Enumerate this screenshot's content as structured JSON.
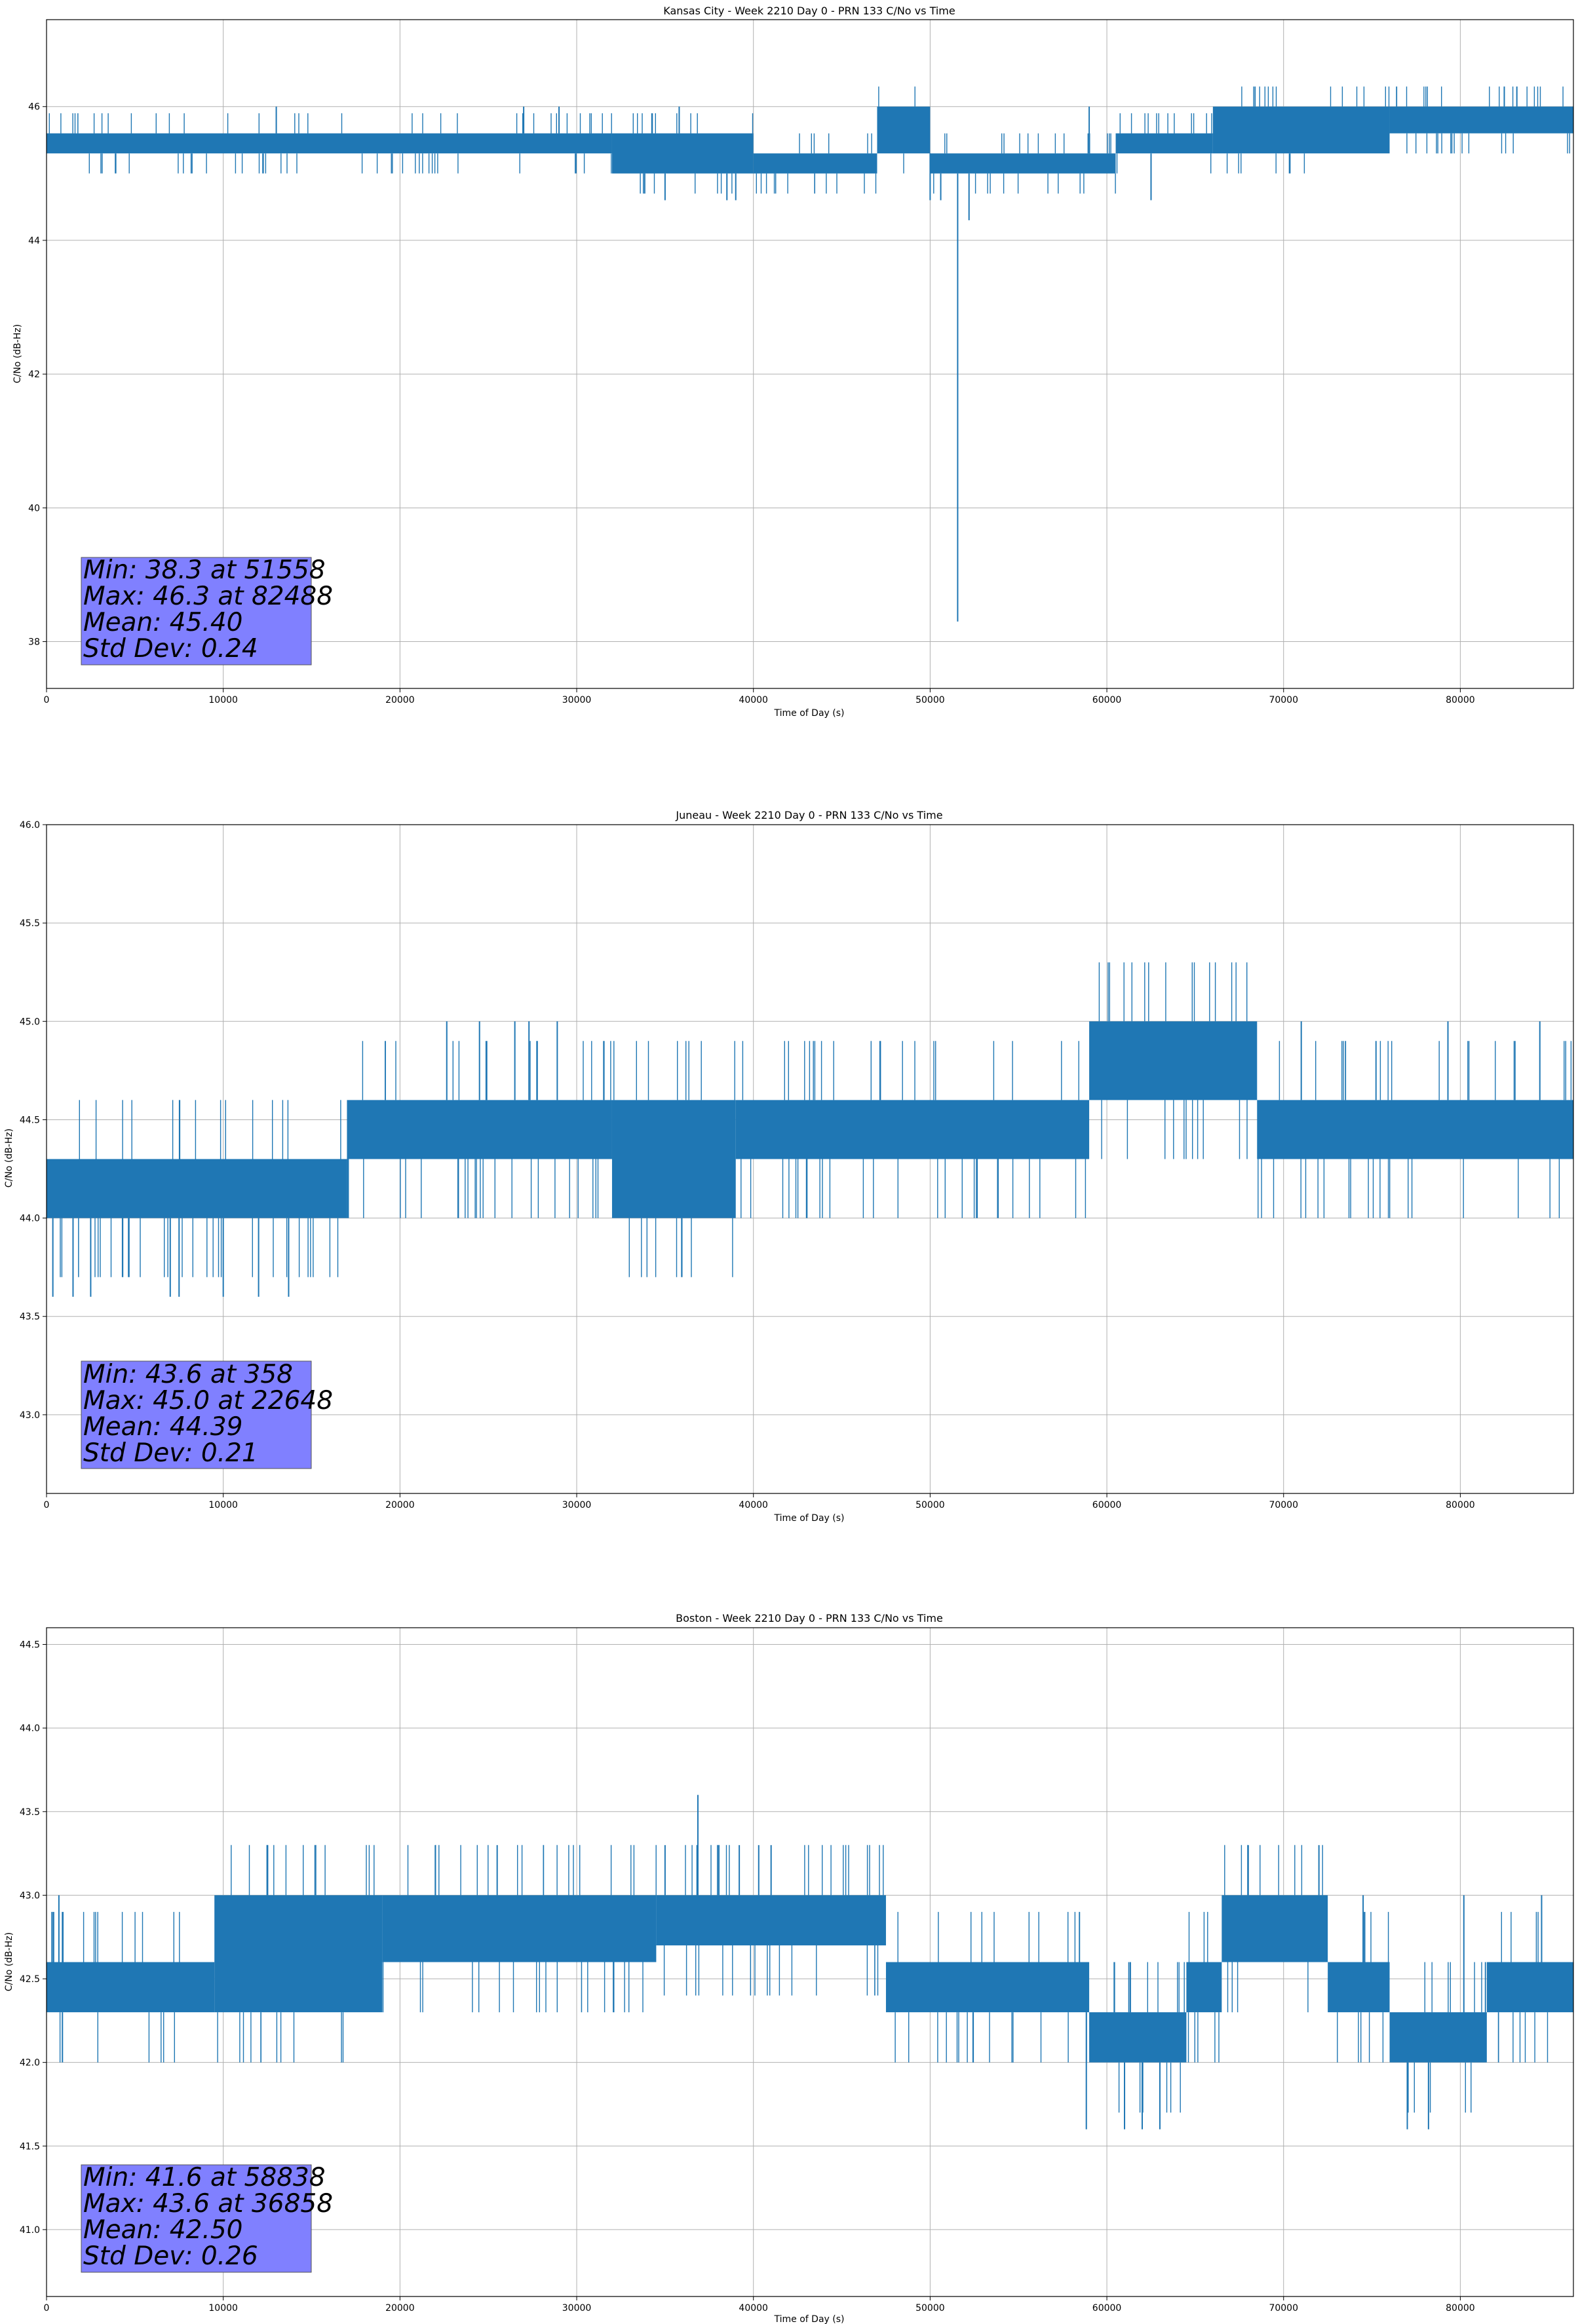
{
  "chart_data": [
    {
      "type": "line",
      "title": "Kansas City - Week 2210 Day 0 - PRN 133 C/No vs Time",
      "xlabel": "Time of Day (s)",
      "ylabel": "C/No (dB-Hz)",
      "xlim": [
        0,
        86400
      ],
      "ylim": [
        37.3,
        47.3
      ],
      "xticks": [
        0,
        10000,
        20000,
        30000,
        40000,
        50000,
        60000,
        70000,
        80000
      ],
      "yticks": [
        38,
        40,
        42,
        44,
        46
      ],
      "ytick_labels": [
        "38",
        "40",
        "42",
        "44",
        "46"
      ],
      "grid": true,
      "series": [
        {
          "name": "C/No",
          "color": "#1f77b4",
          "bands": [
            {
              "x0": 0,
              "x1": 32000,
              "lo": 45.3,
              "hi": 45.6
            },
            {
              "x0": 32000,
              "x1": 40000,
              "lo": 45.0,
              "hi": 45.6
            },
            {
              "x0": 40000,
              "x1": 47000,
              "lo": 45.0,
              "hi": 45.3
            },
            {
              "x0": 47000,
              "x1": 50000,
              "lo": 45.3,
              "hi": 46.0
            },
            {
              "x0": 50000,
              "x1": 60500,
              "lo": 45.0,
              "hi": 45.3
            },
            {
              "x0": 60500,
              "x1": 66000,
              "lo": 45.3,
              "hi": 45.6
            },
            {
              "x0": 66000,
              "x1": 76000,
              "lo": 45.3,
              "hi": 46.0
            },
            {
              "x0": 76000,
              "x1": 86400,
              "lo": 45.6,
              "hi": 46.0
            }
          ],
          "spikes": [
            {
              "x": 51558,
              "y": 38.3
            },
            {
              "x": 52200,
              "y": 44.3
            },
            {
              "x": 13000,
              "y": 46.0
            },
            {
              "x": 27000,
              "y": 46.0
            },
            {
              "x": 29000,
              "y": 46.0
            },
            {
              "x": 35000,
              "y": 44.6
            },
            {
              "x": 35800,
              "y": 46.0
            },
            {
              "x": 38500,
              "y": 44.6
            },
            {
              "x": 39000,
              "y": 44.6
            },
            {
              "x": 50000,
              "y": 44.6
            },
            {
              "x": 50600,
              "y": 44.6
            },
            {
              "x": 59000,
              "y": 46.0
            },
            {
              "x": 62500,
              "y": 44.6
            },
            {
              "x": 82488,
              "y": 46.3
            },
            {
              "x": 83200,
              "y": 46.3
            }
          ]
        }
      ],
      "stats": {
        "min": "Min: 38.3 at 51558",
        "max": "Max: 46.3 at 82488",
        "mean": "Mean: 45.40",
        "std": "Std Dev: 0.24"
      }
    },
    {
      "type": "line",
      "title": "Juneau - Week 2210 Day 0 - PRN 133 C/No vs Time",
      "xlabel": "Time of Day (s)",
      "ylabel": "C/No (dB-Hz)",
      "xlim": [
        0,
        86400
      ],
      "ylim": [
        42.6,
        46.0
      ],
      "xticks": [
        0,
        10000,
        20000,
        30000,
        40000,
        50000,
        60000,
        70000,
        80000
      ],
      "yticks": [
        43.0,
        43.5,
        44.0,
        44.5,
        45.0,
        45.5,
        46.0
      ],
      "ytick_labels": [
        "43.0",
        "43.5",
        "44.0",
        "44.5",
        "45.0",
        "45.5",
        "46.0"
      ],
      "grid": true,
      "series": [
        {
          "name": "C/No",
          "color": "#1f77b4",
          "bands": [
            {
              "x0": 0,
              "x1": 17000,
              "lo": 44.0,
              "hi": 44.3
            },
            {
              "x0": 17000,
              "x1": 32000,
              "lo": 44.3,
              "hi": 44.6
            },
            {
              "x0": 32000,
              "x1": 39000,
              "lo": 44.0,
              "hi": 44.6
            },
            {
              "x0": 39000,
              "x1": 59000,
              "lo": 44.3,
              "hi": 44.6
            },
            {
              "x0": 59000,
              "x1": 68500,
              "lo": 44.6,
              "hi": 45.0
            },
            {
              "x0": 68500,
              "x1": 86400,
              "lo": 44.3,
              "hi": 44.6
            }
          ],
          "spikes": [
            {
              "x": 358,
              "y": 43.6
            },
            {
              "x": 1500,
              "y": 43.6
            },
            {
              "x": 2500,
              "y": 43.6
            },
            {
              "x": 7000,
              "y": 43.6
            },
            {
              "x": 7500,
              "y": 43.6
            },
            {
              "x": 10000,
              "y": 43.6
            },
            {
              "x": 12000,
              "y": 43.6
            },
            {
              "x": 13700,
              "y": 43.6
            },
            {
              "x": 22648,
              "y": 45.0
            },
            {
              "x": 24500,
              "y": 45.0
            },
            {
              "x": 26500,
              "y": 45.0
            },
            {
              "x": 27300,
              "y": 45.0
            },
            {
              "x": 28900,
              "y": 45.0
            },
            {
              "x": 71000,
              "y": 45.0
            },
            {
              "x": 79300,
              "y": 45.0
            },
            {
              "x": 84500,
              "y": 45.0
            }
          ]
        }
      ],
      "stats": {
        "min": "Min: 43.6 at 358",
        "max": "Max: 45.0 at 22648",
        "mean": "Mean: 44.39",
        "std": "Std Dev: 0.21"
      }
    },
    {
      "type": "line",
      "title": "Boston - Week 2210 Day 0 - PRN 133 C/No vs Time",
      "xlabel": "Time of Day (s)",
      "ylabel": "C/No (dB-Hz)",
      "xlim": [
        0,
        86400
      ],
      "ylim": [
        40.6,
        44.6
      ],
      "xticks": [
        0,
        10000,
        20000,
        30000,
        40000,
        50000,
        60000,
        70000,
        80000
      ],
      "yticks": [
        41.0,
        41.5,
        42.0,
        42.5,
        43.0,
        43.5,
        44.0,
        44.5
      ],
      "ytick_labels": [
        "41.0",
        "41.5",
        "42.0",
        "42.5",
        "43.0",
        "43.5",
        "44.0",
        "44.5"
      ],
      "grid": true,
      "series": [
        {
          "name": "C/No",
          "color": "#1f77b4",
          "bands": [
            {
              "x0": 0,
              "x1": 9500,
              "lo": 42.3,
              "hi": 42.6
            },
            {
              "x0": 9500,
              "x1": 19000,
              "lo": 42.3,
              "hi": 43.0
            },
            {
              "x0": 19000,
              "x1": 34500,
              "lo": 42.6,
              "hi": 43.0
            },
            {
              "x0": 34500,
              "x1": 47500,
              "lo": 42.7,
              "hi": 43.0
            },
            {
              "x0": 47500,
              "x1": 59000,
              "lo": 42.3,
              "hi": 42.6
            },
            {
              "x0": 59000,
              "x1": 64500,
              "lo": 42.0,
              "hi": 42.3
            },
            {
              "x0": 64500,
              "x1": 66500,
              "lo": 42.3,
              "hi": 42.6
            },
            {
              "x0": 66500,
              "x1": 72500,
              "lo": 42.6,
              "hi": 43.0
            },
            {
              "x0": 72500,
              "x1": 76000,
              "lo": 42.3,
              "hi": 42.6
            },
            {
              "x0": 76000,
              "x1": 81500,
              "lo": 42.0,
              "hi": 42.3
            },
            {
              "x0": 81500,
              "x1": 86400,
              "lo": 42.3,
              "hi": 42.6
            }
          ],
          "spikes": [
            {
              "x": 700,
              "y": 43.0
            },
            {
              "x": 900,
              "y": 42.0
            },
            {
              "x": 22000,
              "y": 43.3
            },
            {
              "x": 25500,
              "y": 43.3
            },
            {
              "x": 35000,
              "y": 43.3
            },
            {
              "x": 36858,
              "y": 43.6
            },
            {
              "x": 39200,
              "y": 43.3
            },
            {
              "x": 40300,
              "y": 43.3
            },
            {
              "x": 41000,
              "y": 43.3
            },
            {
              "x": 58838,
              "y": 41.6
            },
            {
              "x": 61000,
              "y": 41.6
            },
            {
              "x": 62000,
              "y": 41.6
            },
            {
              "x": 63000,
              "y": 41.6
            },
            {
              "x": 68000,
              "y": 43.3
            },
            {
              "x": 72000,
              "y": 43.3
            },
            {
              "x": 74500,
              "y": 43.0
            },
            {
              "x": 77000,
              "y": 41.6
            },
            {
              "x": 78200,
              "y": 41.6
            },
            {
              "x": 80200,
              "y": 43.0
            },
            {
              "x": 84600,
              "y": 43.0
            }
          ]
        }
      ],
      "stats": {
        "min": "Min: 41.6 at 58838",
        "max": "Max: 43.6 at 36858",
        "mean": "Mean: 42.50",
        "std": "Std Dev: 0.26"
      }
    }
  ]
}
